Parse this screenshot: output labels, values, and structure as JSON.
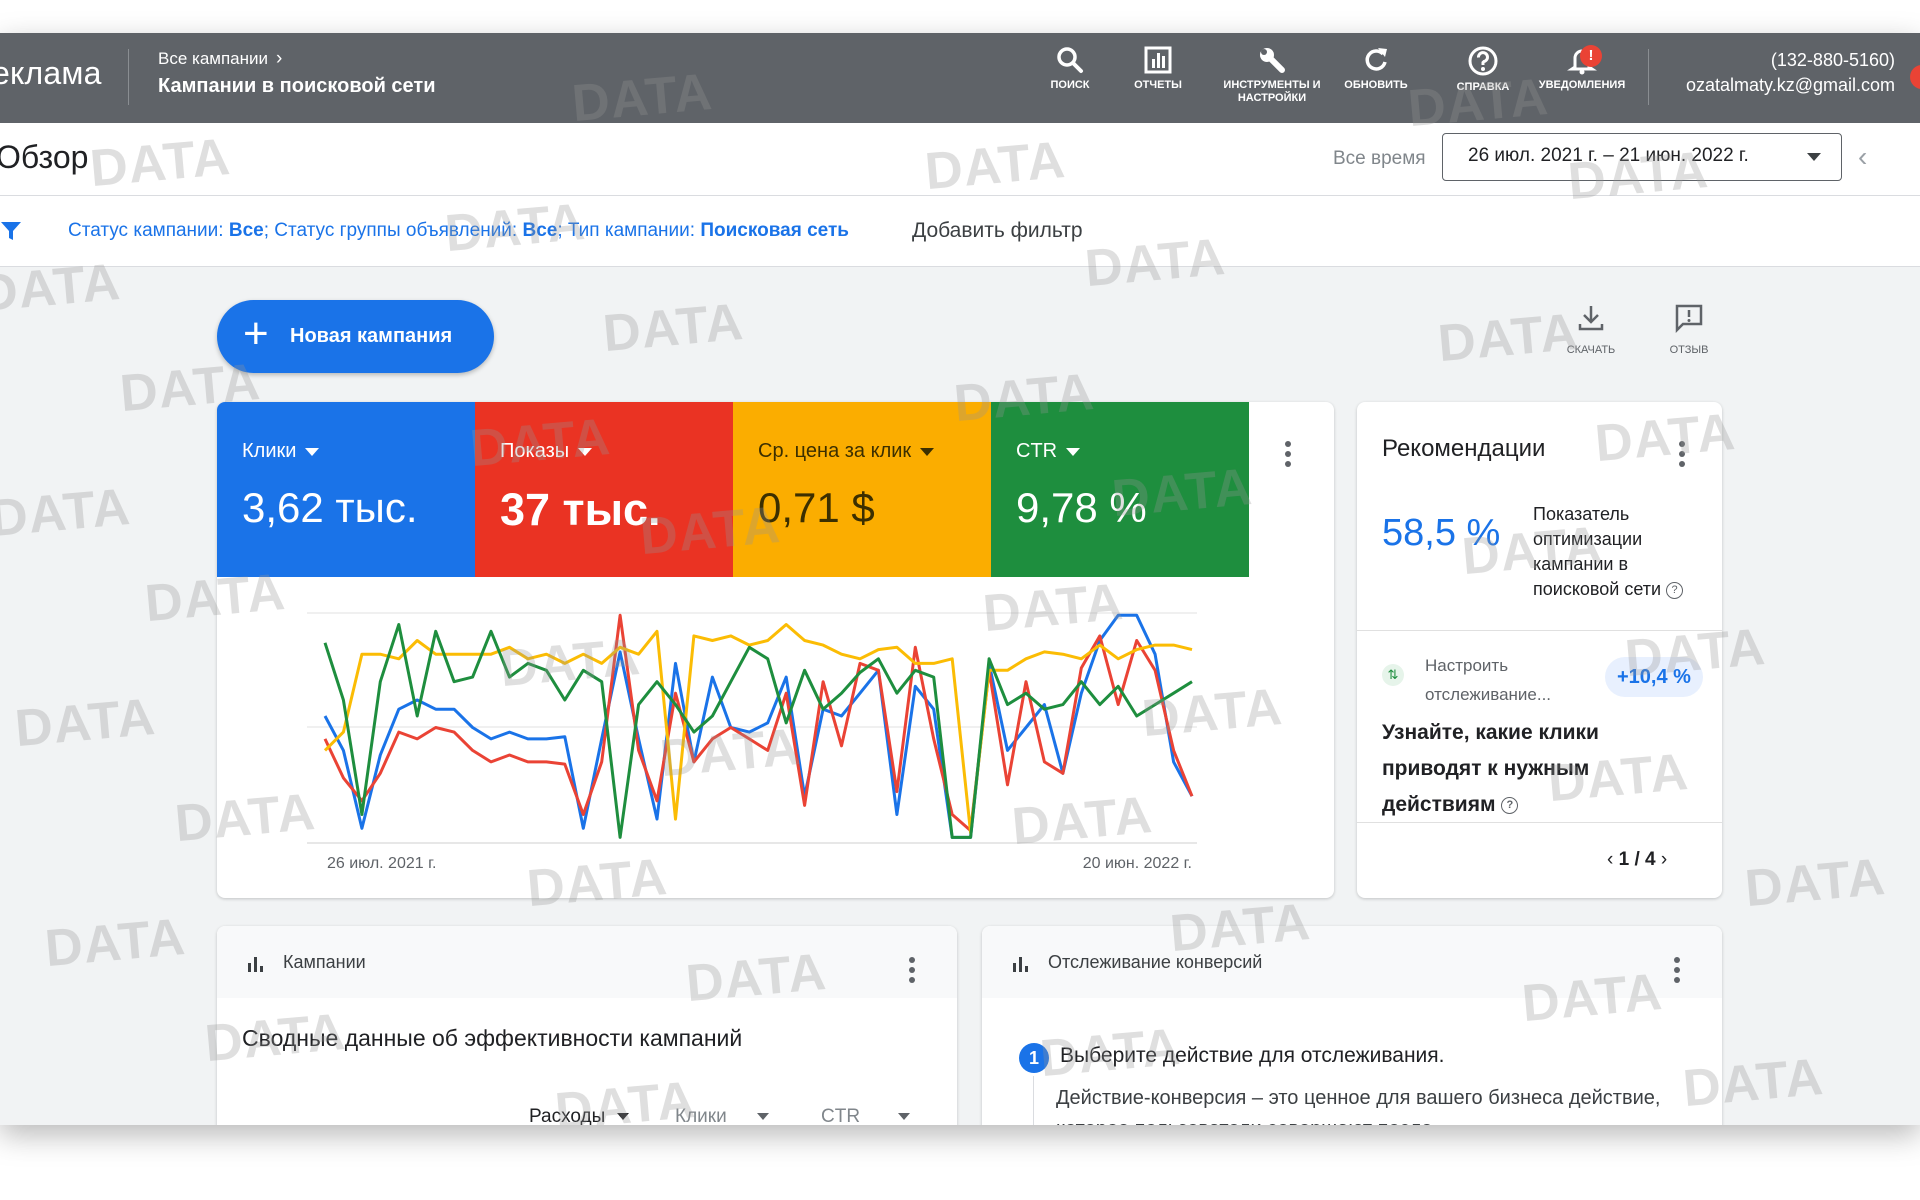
{
  "header": {
    "brand": "еклама",
    "breadcrumb_parent": "Все кампании",
    "breadcrumb_current": "Кампании в поисковой сети",
    "tools": [
      {
        "icon": "search-icon",
        "label": "поиск"
      },
      {
        "icon": "reports-icon",
        "label": "отчеты"
      },
      {
        "icon": "wrench-icon",
        "label": "инструменты и настройки"
      },
      {
        "icon": "refresh-icon",
        "label": "обновить"
      },
      {
        "icon": "help-icon",
        "label": "справка"
      },
      {
        "icon": "bell-icon",
        "label": "уведомления"
      }
    ],
    "notification_badge": "!",
    "account_phone": "(132-880-5160)",
    "account_email": "ozatalmaty.kz@gmail.com"
  },
  "subheader": {
    "page_title": "Обзор",
    "range_label": "Все время",
    "date_range": "26 июл. 2021 г. – 21 июн. 2022 г."
  },
  "filters": {
    "status_label": "Статус кампании: ",
    "status_value": "Все",
    "group_label": "; Статус группы объявлений: ",
    "group_value": "Все",
    "type_label": "; Тип кампании: ",
    "type_value": "Поисковая сеть",
    "add_filter": "Добавить фильтр"
  },
  "actions": {
    "new_campaign": "Новая кампания",
    "download": "СКАЧАТЬ",
    "feedback": "ОТЗЫВ"
  },
  "metrics": [
    {
      "name": "Клики",
      "value": "3,62 тыс.",
      "color": "#1a73e8"
    },
    {
      "name": "Показы",
      "value": "37 тыс.",
      "color": "#ea3323"
    },
    {
      "name": "Ср. цена за клик",
      "value": "0,71 $",
      "color": "#fbad00"
    },
    {
      "name": "CTR",
      "value": "9,78 %",
      "color": "#1e8e3e"
    }
  ],
  "chart_data": {
    "type": "line",
    "title": "",
    "x_start_label": "26 июл. 2021 г.",
    "x_end_label": "20 июн. 2022 г.",
    "ylim": [
      0,
      1
    ],
    "series": [
      {
        "name": "Клики",
        "color": "#1a73e8",
        "values": [
          0.55,
          0.4,
          0.06,
          0.38,
          0.58,
          0.62,
          0.58,
          0.58,
          0.5,
          0.45,
          0.48,
          0.45,
          0.45,
          0.46,
          0.06,
          0.45,
          0.83,
          0.45,
          0.1,
          0.78,
          0.35,
          0.72,
          0.5,
          0.48,
          0.52,
          0.72,
          0.2,
          0.58,
          0.55,
          0.65,
          0.75,
          0.12,
          0.68,
          0.58,
          0.02,
          0.02,
          0.78,
          0.4,
          0.5,
          0.6,
          0.3,
          0.65,
          0.88,
          0.99,
          0.99,
          0.82,
          0.35,
          0.2
        ]
      },
      {
        "name": "Показы",
        "color": "#ea4335",
        "values": [
          0.45,
          0.28,
          0.18,
          0.3,
          0.48,
          0.45,
          0.5,
          0.48,
          0.4,
          0.35,
          0.38,
          0.35,
          0.35,
          0.34,
          0.12,
          0.35,
          0.99,
          0.4,
          0.18,
          0.65,
          0.35,
          0.45,
          0.5,
          0.45,
          0.4,
          0.65,
          0.16,
          0.7,
          0.42,
          0.78,
          0.75,
          0.22,
          0.85,
          0.45,
          0.12,
          0.05,
          0.75,
          0.25,
          0.7,
          0.35,
          0.3,
          0.76,
          0.9,
          0.6,
          0.88,
          0.75,
          0.4,
          0.2
        ]
      },
      {
        "name": "Ср. цена за клик",
        "color": "#fbbc04",
        "values": [
          0.4,
          0.48,
          0.82,
          0.82,
          0.8,
          0.88,
          0.82,
          0.82,
          0.82,
          0.82,
          0.85,
          0.8,
          0.82,
          0.78,
          0.82,
          0.78,
          0.85,
          0.82,
          0.92,
          0.1,
          0.9,
          0.88,
          0.9,
          0.86,
          0.88,
          0.95,
          0.88,
          0.86,
          0.82,
          0.8,
          0.84,
          0.85,
          0.78,
          0.78,
          0.8,
          0.04,
          0.75,
          0.75,
          0.8,
          0.83,
          0.82,
          0.8,
          0.86,
          0.8,
          0.84,
          0.86,
          0.86,
          0.84
        ]
      },
      {
        "name": "CTR",
        "color": "#1e8e3e",
        "values": [
          0.87,
          0.62,
          0.12,
          0.7,
          0.95,
          0.55,
          0.92,
          0.7,
          0.72,
          0.92,
          0.72,
          0.78,
          0.75,
          0.62,
          0.75,
          0.7,
          0.02,
          0.6,
          0.7,
          0.6,
          0.48,
          0.55,
          0.7,
          0.85,
          0.8,
          0.52,
          0.75,
          0.58,
          0.65,
          0.74,
          0.8,
          0.65,
          0.75,
          0.72,
          0.02,
          0.02,
          0.8,
          0.6,
          0.65,
          0.58,
          0.6,
          0.7,
          0.6,
          0.68,
          0.55,
          0.6,
          0.65,
          0.7
        ]
      }
    ]
  },
  "recommendations": {
    "title": "Рекомендации",
    "score": "58,5 %",
    "score_label": "Показатель оптимизации кампании в поисковой сети",
    "item_title": "Настроить отслеживание...",
    "item_badge": "+10,4 %",
    "item_desc": "Узнайте, какие клики приводят к нужным действиям",
    "pager": "1 / 4"
  },
  "campaigns_card": {
    "title": "Кампании",
    "summary": "Сводные данные об эффективности кампаний",
    "columns": [
      "Расходы",
      "Клики",
      "CTR"
    ]
  },
  "conversions_card": {
    "title": "Отслеживание конверсий",
    "step_number": "1",
    "step_title": "Выберите действие для отслеживания.",
    "step_desc": "Действие-конверсия – это ценное для вашего бизнеса действие, которое пользователи совершают после"
  },
  "watermark": "DATA"
}
